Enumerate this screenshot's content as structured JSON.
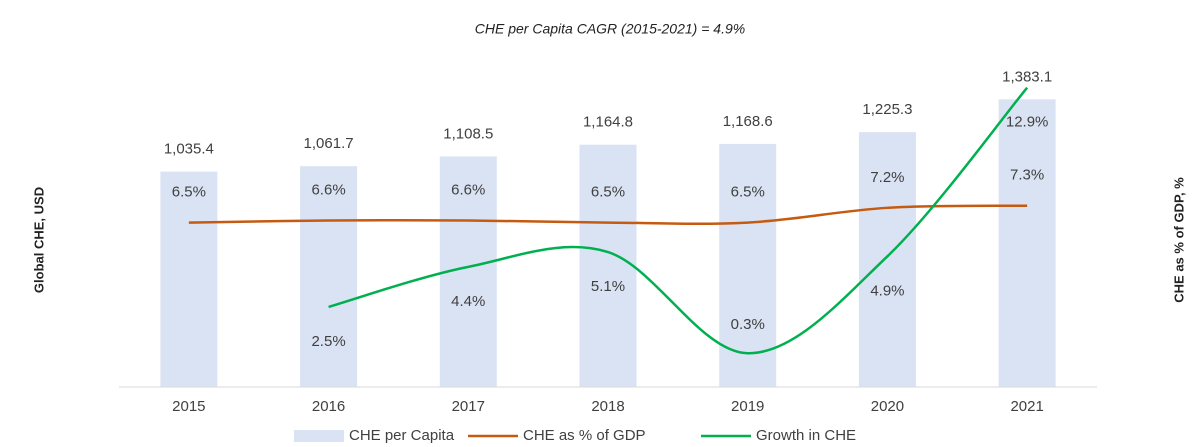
{
  "chart_data": {
    "type": "combo",
    "title": "CHE per Capita CAGR (2015-2021) = 4.9%",
    "y_label": "Global CHE, USD",
    "y2_label": "CHE as % of GDP, %",
    "categories": [
      "2015",
      "2016",
      "2017",
      "2018",
      "2019",
      "2020",
      "2021"
    ],
    "ylim": [
      0,
      1500
    ],
    "y2lim": [
      -1.3,
      13.5
    ],
    "series": [
      {
        "name": "CHE per Capita",
        "type": "bar",
        "color": "#dae3f3",
        "values": [
          1035.4,
          1061.7,
          1108.5,
          1164.8,
          1168.6,
          1225.3,
          1383.1
        ],
        "value_labels": [
          "1,035.4",
          "1,061.7",
          "1,108.5",
          "1,164.8",
          "1,168.6",
          "1,225.3",
          "1,383.1"
        ]
      },
      {
        "name": "CHE as % of GDP",
        "type": "line",
        "axis": "y2",
        "color": "#c55a11",
        "values": [
          6.5,
          6.6,
          6.6,
          6.5,
          6.5,
          7.2,
          7.3
        ],
        "value_labels": [
          "6.5%",
          "6.6%",
          "6.6%",
          "6.5%",
          "6.5%",
          "7.2%",
          "7.3%"
        ]
      },
      {
        "name": "Growth in CHE",
        "type": "line",
        "axis": "y2",
        "color": "#00b050",
        "values": [
          null,
          2.5,
          4.4,
          5.1,
          0.3,
          4.9,
          12.9
        ],
        "value_labels": [
          null,
          "2.5%",
          "4.4%",
          "5.1%",
          "0.3%",
          "4.9%",
          "12.9%"
        ]
      }
    ],
    "legend": "bottom"
  }
}
